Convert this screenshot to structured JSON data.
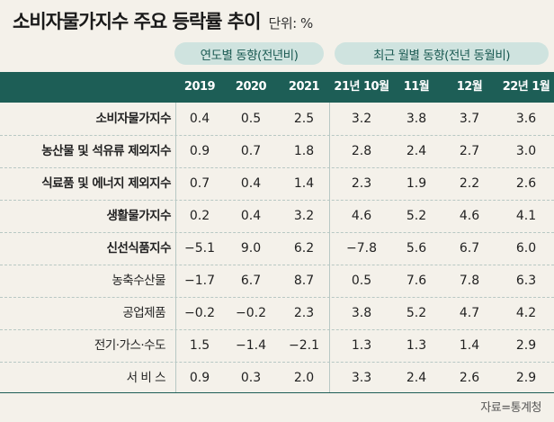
{
  "header": {
    "title": "소비자물가지수 주요 등락률 추이",
    "unit": "단위: %"
  },
  "groups": {
    "annual": "연도별 동향(전년비)",
    "monthly": "최근 월별 동향(전년 동월비)"
  },
  "chart_data": {
    "type": "table",
    "columns": [
      "2019",
      "2020",
      "2021",
      "21년 10월",
      "11월",
      "12월",
      "22년 1월"
    ],
    "rows": [
      {
        "label": "소비자물가지수",
        "values": [
          "0.4",
          "0.5",
          "2.5",
          "3.2",
          "3.8",
          "3.7",
          "3.6"
        ]
      },
      {
        "label": "농산물 및 석유류 제외지수",
        "values": [
          "0.9",
          "0.7",
          "1.8",
          "2.8",
          "2.4",
          "2.7",
          "3.0"
        ]
      },
      {
        "label": "식료품 및 에너지 제외지수",
        "values": [
          "0.7",
          "0.4",
          "1.4",
          "2.3",
          "1.9",
          "2.2",
          "2.6"
        ]
      },
      {
        "label": "생활물가지수",
        "values": [
          "0.2",
          "0.4",
          "3.2",
          "4.6",
          "5.2",
          "4.6",
          "4.1"
        ]
      },
      {
        "label": "신선식품지수",
        "values": [
          "−5.1",
          "9.0",
          "6.2",
          "−7.8",
          "5.6",
          "6.7",
          "6.0"
        ]
      },
      {
        "label": "농축수산물",
        "values": [
          "−1.7",
          "6.7",
          "8.7",
          "0.5",
          "7.6",
          "7.8",
          "6.3"
        ]
      },
      {
        "label": "공업제품",
        "values": [
          "−0.2",
          "−0.2",
          "2.3",
          "3.8",
          "5.2",
          "4.7",
          "4.2"
        ]
      },
      {
        "label": "전기·가스·수도",
        "values": [
          "1.5",
          "−1.4",
          "−2.1",
          "1.3",
          "1.3",
          "1.4",
          "2.9"
        ]
      },
      {
        "label": "서 비 스",
        "values": [
          "0.9",
          "0.3",
          "2.0",
          "3.3",
          "2.4",
          "2.6",
          "2.9"
        ]
      }
    ]
  },
  "source": "자료=통계청",
  "colors": {
    "header_bg": "#1d5e56",
    "pill_bg": "#cfe3df",
    "background": "#f4f1ea"
  }
}
